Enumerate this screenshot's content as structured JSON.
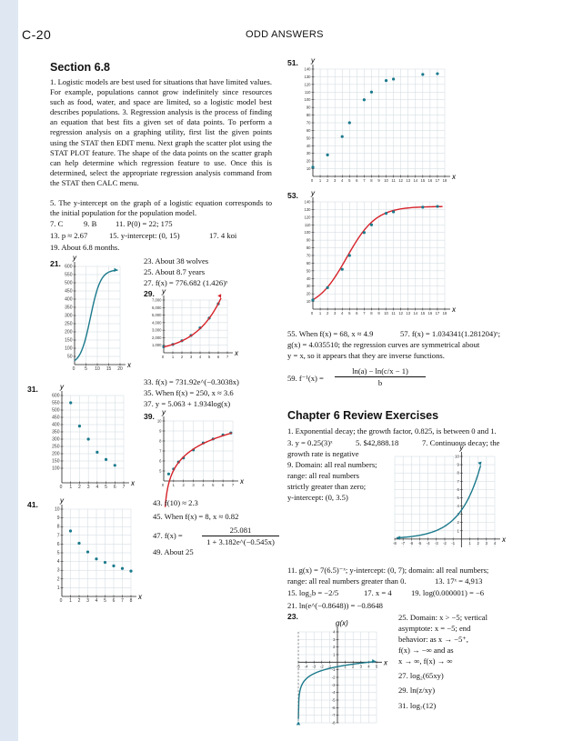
{
  "page": {
    "number": "C-20",
    "title": "ODD ANSWERS"
  },
  "section": {
    "title": "Section 6.8",
    "a1": "1. Logistic models are best used for situations that have limited values. For example, populations cannot grow indefinitely since resources such as food, water, and space are limited, so a logistic model best describes populations. 3. Regression analysis is the process of finding an equation that best fits a given set of data points. To perform a regression analysis on a graphing utility, first list the given points using the STAT then EDIT menu. Next graph the scatter plot using the STAT PLOT feature. The shape of the data points on the scatter graph can help determine which regression feature to use. Once this is determined, select the appropriate regression analysis command from the STAT then CALC menu.",
    "a5": "5. The y-intercept on the graph of a logistic equation corresponds to the initial population for the population model.",
    "l7": "7. C",
    "l9": "9. B",
    "l11": "11. P(0) = 22; 175",
    "l13": "13. p ≈ 2.67",
    "l15": "15. y-intercept: (0, 15)",
    "l17": "17. 4 koi",
    "l19": "19. About 6.8 months.",
    "n21": "21.",
    "l23": "23. About 38 wolves",
    "l25": "25. About 8.7 years",
    "l27": "27. f(x) = 776.682 (1.426)ˣ",
    "n29": "29.",
    "n31": "31.",
    "l33": "33. f(x) = 731.92e^(−0.3038x)",
    "l35": "35. When f(x) = 250, x ≈ 3.6",
    "l37": "37. y = 5.063 + 1.934log(x)",
    "n39": "39.",
    "n41": "41.",
    "l43": "43. f(10) ≈ 2.3",
    "l45": "45. When f(x) = 8, x ≈ 0.82",
    "l47a": "47. f(x) =",
    "l47num": "25.081",
    "l47den": "1 + 3.182e^(−0.545x)",
    "l49": "49. About 25",
    "n51": "51.",
    "n53": "53.",
    "l55": "55. When f(x) = 68, x ≈ 4.9",
    "l57": "57. f(x) = 1.034341(1.281204)ˣ;",
    "l57b": "g(x) = 4.035510; the regression curves are symmetrical about",
    "l57c": "y = x, so it appears that they are inverse functions.",
    "l59a": "59. f⁻¹(x) =",
    "l59num": "ln(a) − ln(c/x − 1)",
    "l59den": "b"
  },
  "review": {
    "title": "Chapter 6 Review Exercises",
    "r1": "1. Exponential decay; the growth factor, 0.825, is between 0 and 1.",
    "r3": "3. y = 0.25(3)ˣ",
    "r5": "5. $42,888.18",
    "r7": "7. Continuous decay; the",
    "r7b": "growth rate is negative",
    "r9": "9. Domain: all real numbers;",
    "r9b": "range: all real numbers",
    "r9c": "strictly greater than zero;",
    "r9d": "y-intercept: (0, 3.5)",
    "r11": "11. g(x) = 7(6.5)⁻ˣ; y-intercept: (0, 7); domain: all real numbers;",
    "r11b": "range: all real numbers greater than 0.",
    "r13": "13. 17ˣ = 4,913",
    "r15": "15. log₂b = −2/5",
    "r17": "17. x = 4",
    "r19": "19. log(0.000001) = −6",
    "r21": "21. ln(e^(−0.8648)) = −0.8648",
    "n23": "23.",
    "r25": "25. Domain: x > −5; vertical",
    "r25b": "asymptote: x = −5; end",
    "r25c": "behavior: as x → −5⁺,",
    "r25d": "f(x) → −∞ and as",
    "r25e": "x → ∞, f(x) → ∞",
    "r27": "27. log₂(65xy)",
    "r29": "29. ln(z/xy)",
    "r31": "31. log₇(12)"
  },
  "axis": {
    "x": "x",
    "y": "y",
    "gx": "g(x)"
  },
  "colors": {
    "teal": "#1b7a8c",
    "red": "#d6232a",
    "text": "#111111"
  },
  "chart_data": [
    {
      "id": "21",
      "type": "line",
      "ylim": [
        0,
        600
      ],
      "xlim": [
        0,
        20
      ],
      "yticks": [
        50,
        100,
        150,
        200,
        250,
        300,
        350,
        400,
        450,
        500,
        550,
        600
      ],
      "xticks": [
        5,
        10,
        15,
        20
      ],
      "series": [
        {
          "color": "#1b7a8c",
          "kind": "logistic",
          "L": 580,
          "k": 0.45,
          "x0": 7
        }
      ]
    },
    {
      "id": "29",
      "type": "scatter",
      "xlim": [
        0,
        7
      ],
      "ylim": [
        0,
        7000
      ],
      "yticks": [
        1000,
        2000,
        3000,
        4000,
        5000,
        6000,
        7000
      ],
      "xticks": [
        1,
        2,
        3,
        4,
        5,
        6,
        7
      ],
      "points": [
        [
          0,
          800
        ],
        [
          1,
          1100
        ],
        [
          2,
          1600
        ],
        [
          3,
          2300
        ],
        [
          4,
          3300
        ],
        [
          5,
          4600
        ],
        [
          6,
          6500
        ]
      ],
      "curve": {
        "color": "#d6232a",
        "a": 776.682,
        "b": 1.426
      }
    },
    {
      "id": "31",
      "type": "scatter",
      "xlim": [
        0,
        7
      ],
      "ylim": [
        0,
        600
      ],
      "yticks": [
        100,
        150,
        200,
        250,
        300,
        350,
        400,
        450,
        500,
        550,
        600
      ],
      "xticks": [
        1,
        2,
        3,
        4,
        5,
        6,
        7
      ],
      "points": [
        [
          1,
          550
        ],
        [
          2,
          390
        ],
        [
          3,
          300
        ],
        [
          4,
          210
        ],
        [
          5,
          160
        ],
        [
          6,
          120
        ]
      ]
    },
    {
      "id": "39",
      "type": "scatter",
      "xlim": [
        0,
        7
      ],
      "ylim": [
        4,
        10
      ],
      "yticks": [
        5,
        6,
        7,
        8,
        9,
        10
      ],
      "xticks": [
        1,
        2,
        3,
        4,
        5,
        6,
        7
      ],
      "points": [
        [
          0.5,
          4.7
        ],
        [
          1,
          5.2
        ],
        [
          1.5,
          5.9
        ],
        [
          2,
          6.3
        ],
        [
          3,
          7.1
        ],
        [
          4,
          7.8
        ],
        [
          5,
          8.2
        ],
        [
          6,
          8.6
        ],
        [
          6.8,
          8.8
        ]
      ],
      "curve": {
        "color": "#d6232a",
        "a": 5.063,
        "b": 1.934
      }
    },
    {
      "id": "41",
      "type": "scatter",
      "xlim": [
        0,
        8
      ],
      "ylim": [
        0,
        10
      ],
      "yticks": [
        1,
        2,
        3,
        4,
        5,
        6,
        7,
        8,
        9,
        10
      ],
      "xticks": [
        1,
        2,
        3,
        4,
        5,
        6,
        7,
        8
      ],
      "points": [
        [
          1,
          7.5
        ],
        [
          2,
          6.1
        ],
        [
          3,
          5.1
        ],
        [
          4,
          4.3
        ],
        [
          5,
          3.9
        ],
        [
          6,
          3.5
        ],
        [
          7,
          3.2
        ],
        [
          8,
          2.9
        ]
      ]
    },
    {
      "id": "51",
      "type": "scatter",
      "xlim": [
        0,
        18
      ],
      "ylim": [
        0,
        140
      ],
      "yticks": [
        10,
        20,
        30,
        40,
        50,
        60,
        70,
        80,
        90,
        100,
        110,
        120,
        130,
        140
      ],
      "xticks": [
        1,
        2,
        3,
        4,
        5,
        6,
        7,
        8,
        9,
        10,
        11,
        12,
        13,
        14,
        15,
        16,
        17,
        18
      ],
      "points": [
        [
          0,
          12
        ],
        [
          2,
          28
        ],
        [
          4,
          52
        ],
        [
          5,
          70
        ],
        [
          7,
          100
        ],
        [
          8,
          110
        ],
        [
          10,
          125
        ],
        [
          11,
          127
        ],
        [
          15,
          133
        ],
        [
          17,
          134
        ]
      ]
    },
    {
      "id": "53",
      "type": "scatter",
      "xlim": [
        0,
        18
      ],
      "ylim": [
        0,
        140
      ],
      "yticks": [
        10,
        20,
        30,
        40,
        50,
        60,
        70,
        80,
        90,
        100,
        110,
        120,
        130,
        140
      ],
      "xticks": [
        1,
        2,
        3,
        4,
        5,
        6,
        7,
        8,
        9,
        10,
        11,
        12,
        13,
        14,
        15,
        16,
        17,
        18
      ],
      "points": [
        [
          0,
          12
        ],
        [
          2,
          28
        ],
        [
          4,
          52
        ],
        [
          5,
          70
        ],
        [
          7,
          100
        ],
        [
          8,
          110
        ],
        [
          10,
          125
        ],
        [
          11,
          127
        ],
        [
          15,
          133
        ],
        [
          17,
          134
        ]
      ],
      "logistic": {
        "color": "#d6232a",
        "L": 134,
        "k": 0.5,
        "x0": 4.6
      }
    },
    {
      "id": "r9",
      "type": "line",
      "xlim": [
        -8,
        4
      ],
      "ylim": [
        -1,
        10
      ],
      "yticks": [
        1,
        2,
        3,
        4,
        5,
        6,
        7,
        8,
        9,
        10
      ],
      "xticks": [
        -8,
        -7,
        -6,
        -5,
        -4,
        -3,
        -2,
        -1,
        1,
        2,
        3,
        4
      ],
      "series": [
        {
          "color": "#1b7a8c",
          "kind": "exp",
          "a": 3.5,
          "b": 1.5
        }
      ]
    },
    {
      "id": "r23",
      "type": "line",
      "xlim": [
        -5,
        5
      ],
      "ylim": [
        -8,
        4
      ],
      "yticks": [
        -8,
        -7,
        -6,
        -5,
        -4,
        -3,
        -2,
        -1,
        1,
        2,
        3,
        4
      ],
      "xticks": [
        -5,
        -4,
        -3,
        -2,
        -1,
        1,
        2,
        3,
        4,
        5
      ],
      "series": [
        {
          "color": "#1b7a8c",
          "kind": "log",
          "shift": 5
        }
      ]
    }
  ]
}
